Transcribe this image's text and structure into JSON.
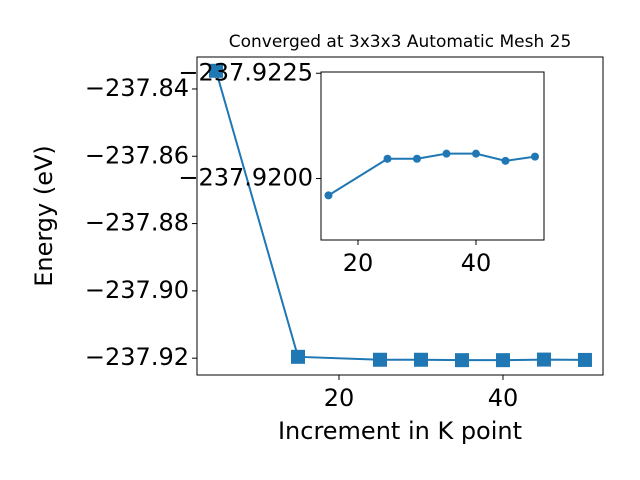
{
  "chart_data": [
    {
      "type": "line",
      "title": "Converged at 3x3x3 Automatic Mesh 25",
      "x_label": "Increment in K point",
      "y_label": "Energy (eV)",
      "x": [
        5,
        15,
        25,
        30,
        35,
        40,
        45,
        50
      ],
      "series": [
        {
          "name": null,
          "color": "#1f77b4",
          "marker": "square",
          "values": [
            -237.8346,
            -237.9196,
            -237.92047,
            -237.92047,
            -237.92059,
            -237.92059,
            -237.92042,
            -237.92052
          ]
        }
      ],
      "xlim": [
        2.68,
        52.2
      ],
      "ylim": [
        -237.925,
        -237.8305
      ],
      "xticks": [
        20,
        40
      ],
      "yticks": [
        {
          "value": -237.92,
          "label": "−237.92"
        },
        {
          "value": -237.9,
          "label": "−237.90"
        },
        {
          "value": -237.88,
          "label": "−237.88"
        },
        {
          "value": -237.86,
          "label": "−237.86"
        },
        {
          "value": -237.84,
          "label": "−237.84"
        }
      ]
    },
    {
      "type": "line",
      "x": [
        15,
        25,
        30,
        35,
        40,
        45,
        50
      ],
      "series": [
        {
          "name": null,
          "color": "#1f77b4",
          "marker": "circle",
          "values": [
            -237.9196,
            -237.92047,
            -237.92047,
            -237.92059,
            -237.92059,
            -237.92042,
            -237.92052
          ]
        }
      ],
      "xlim": [
        13.73,
        51.53
      ],
      "ylim": [
        -237.91854,
        -237.92253
      ],
      "xticks": [
        20,
        40
      ],
      "yticks": [
        {
          "value": -237.92,
          "label": "−237.9200"
        },
        {
          "value": -237.9225,
          "label": "−237.9225"
        }
      ]
    }
  ]
}
